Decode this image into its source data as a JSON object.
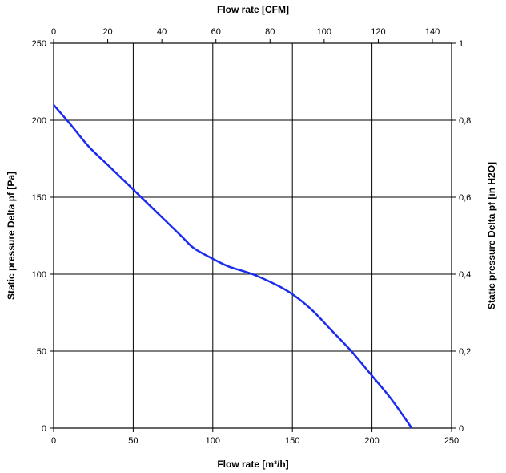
{
  "chart_data": {
    "type": "line",
    "title": "",
    "xlabel": "Flow rate [m³/h]",
    "ylabel": "Static pressure Delta pf [Pa]",
    "x2label": "Flow rate [CFM]",
    "y2label": "Static pressure Delta pf [in H2O]",
    "xlim": [
      0,
      250
    ],
    "ylim": [
      0,
      250
    ],
    "x2lim": [
      0,
      147.1
    ],
    "y2lim": [
      0,
      1.0
    ],
    "xticks": [
      "0",
      "50",
      "100",
      "150",
      "200",
      "250"
    ],
    "yticks": [
      "0",
      "50",
      "100",
      "150",
      "200",
      "250"
    ],
    "x2ticks": [
      "0",
      "20",
      "40",
      "60",
      "80",
      "100",
      "120",
      "140"
    ],
    "y2ticks": [
      "0",
      "0,2",
      "0,4",
      "0,6",
      "0,8",
      "1"
    ],
    "grid": true,
    "line_color": "#1a2cf0",
    "series": [
      {
        "x": [
          0,
          10,
          22,
          35,
          50,
          65,
          80,
          88,
          100,
          110,
          125,
          140,
          150,
          162,
          175,
          187,
          200,
          212,
          225
        ],
        "values": [
          210,
          198,
          183,
          170,
          155,
          140,
          125,
          117,
          110,
          105,
          100,
          93,
          87,
          77,
          63,
          50,
          34,
          19,
          0
        ]
      }
    ]
  }
}
